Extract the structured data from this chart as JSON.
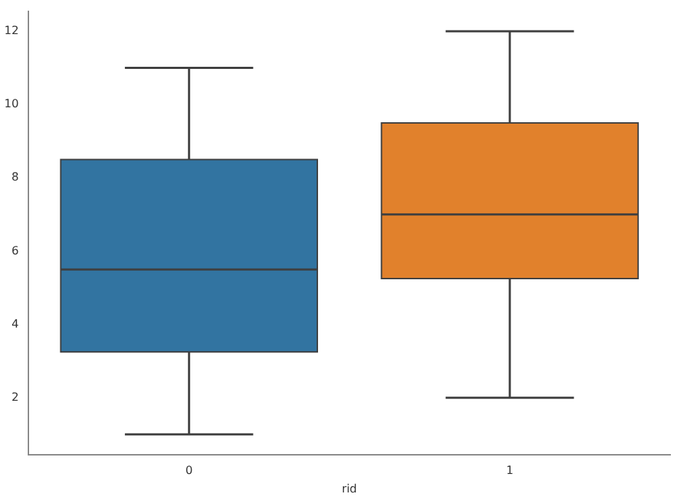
{
  "chart_data": {
    "type": "box",
    "xlabel": "rid",
    "categories": [
      "0",
      "1"
    ],
    "colors": [
      "#3274a1",
      "#e1812c"
    ],
    "boxes": [
      {
        "low": 1,
        "q1": 3.25,
        "median": 5.5,
        "q3": 8.5,
        "high": 11
      },
      {
        "low": 2,
        "q1": 5.25,
        "median": 7,
        "q3": 9.5,
        "high": 12
      }
    ],
    "ylim": [
      0.45,
      12.55
    ],
    "yticks": [
      2,
      4,
      6,
      8,
      10,
      12
    ],
    "grid": false,
    "legend": false
  }
}
